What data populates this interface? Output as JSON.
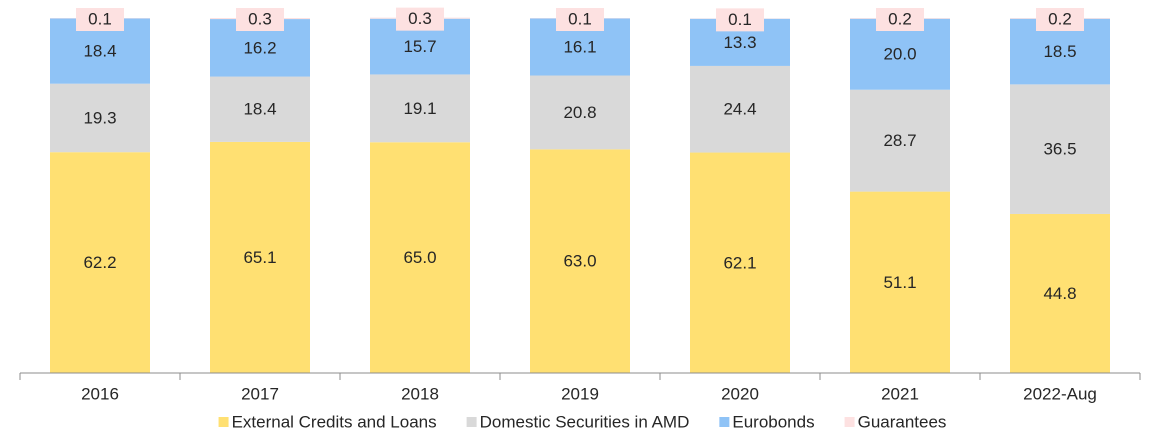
{
  "chart_data": {
    "type": "stacked_bar",
    "categories": [
      "2016",
      "2017",
      "2018",
      "2019",
      "2020",
      "2021",
      "2022-Aug"
    ],
    "series": [
      {
        "name": "External Credits and Loans",
        "color": "#FFE072",
        "values": [
          62.2,
          65.1,
          65.0,
          63.0,
          62.1,
          51.1,
          44.8
        ],
        "value_labels": [
          "62.2",
          "65.1",
          "65.0",
          "63.0",
          "62.1",
          "51.1",
          "44.8"
        ]
      },
      {
        "name": "Domestic Securities in AMD",
        "color": "#D9D9D9",
        "values": [
          19.3,
          18.4,
          19.1,
          20.8,
          24.4,
          28.7,
          36.5
        ],
        "value_labels": [
          "19.3",
          "18.4",
          "19.1",
          "20.8",
          "24.4",
          "28.7",
          "36.5"
        ]
      },
      {
        "name": "Eurobonds",
        "color": "#8FC3F6",
        "values": [
          18.4,
          16.2,
          15.7,
          16.1,
          13.3,
          20.0,
          18.5
        ],
        "value_labels": [
          "18.4",
          "16.2",
          "15.7",
          "16.1",
          "13.3",
          "20.0",
          "18.5"
        ]
      },
      {
        "name": "Guarantees",
        "color": "#FDE1E1",
        "values": [
          0.1,
          0.3,
          0.3,
          0.1,
          0.1,
          0.2,
          0.2
        ],
        "value_labels": [
          "0.1",
          "0.3",
          "0.3",
          "0.1",
          "0.1",
          "0.2",
          "0.2"
        ]
      }
    ],
    "ylim": [
      0,
      100
    ],
    "legend": "bottom"
  }
}
